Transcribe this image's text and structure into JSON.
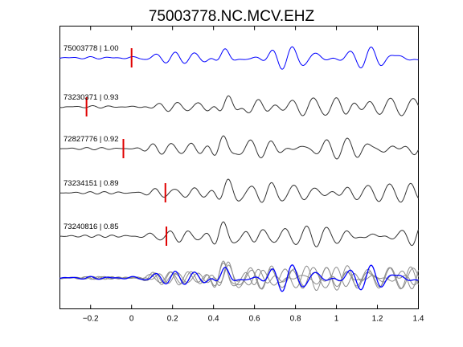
{
  "chart_data": {
    "type": "line",
    "title": "75003778.NC.MCV.EHZ",
    "xlabel": "",
    "ylabel": "",
    "xlim": [
      -0.35,
      1.4
    ],
    "x_ticks": [
      -0.2,
      0,
      0.2,
      0.4,
      0.6,
      0.8,
      1,
      1.2,
      1.4
    ],
    "x_tick_labels": [
      "−0.2",
      "0",
      "0.2",
      "0.4",
      "0.6",
      "0.8",
      "1",
      "1.2",
      "1.4"
    ],
    "grid": false,
    "colors": {
      "reference": "#0000ff",
      "match": "#333333",
      "stack_gray": "#8c8c8c",
      "pick": "#e00000"
    },
    "series": [
      {
        "name": "75003778 | 1.00",
        "event_id": "75003778",
        "correlation": 1.0,
        "pick_time": 0.0,
        "color": "#0000ff",
        "seed": 1,
        "offset": 0.0
      },
      {
        "name": "73230371 | 0.93",
        "event_id": "73230371",
        "correlation": 0.93,
        "pick_time": -0.22,
        "color": "#333333",
        "seed": 2,
        "offset": -0.015
      },
      {
        "name": "72827776 | 0.92",
        "event_id": "72827776",
        "correlation": 0.92,
        "pick_time": -0.04,
        "color": "#333333",
        "seed": 3,
        "offset": 0.01
      },
      {
        "name": "73234151 | 0.89",
        "event_id": "73234151",
        "correlation": 0.89,
        "pick_time": 0.165,
        "color": "#333333",
        "seed": 4,
        "offset": -0.01
      },
      {
        "name": "73240816 | 0.85",
        "event_id": "73240816",
        "correlation": 0.85,
        "pick_time": 0.17,
        "color": "#333333",
        "seed": 5,
        "offset": 0.012
      }
    ],
    "overlay": {
      "description_in_image": false,
      "includes_all_series": true
    }
  }
}
